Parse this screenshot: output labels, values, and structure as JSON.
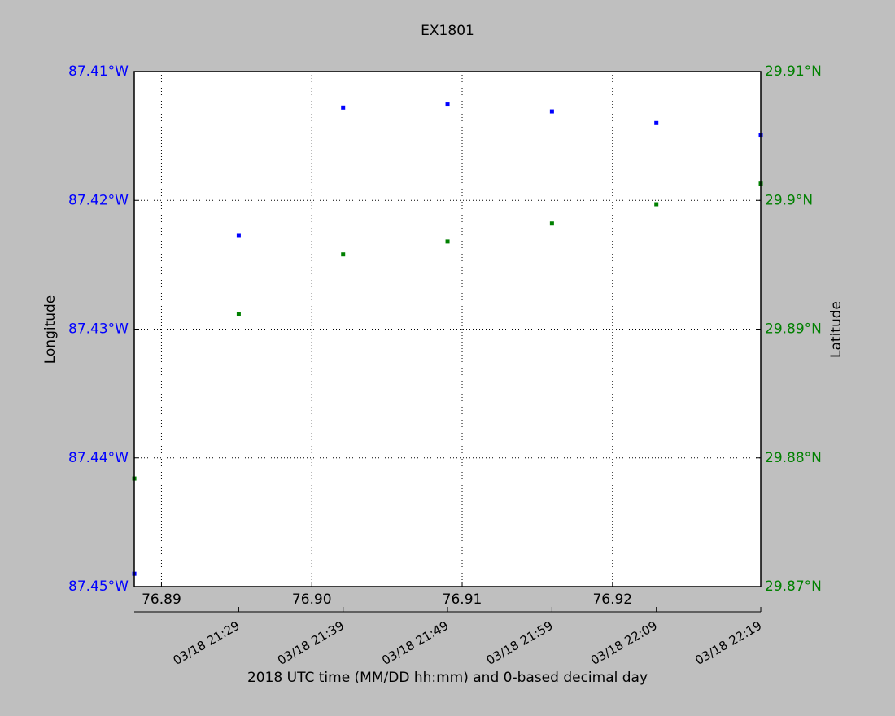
{
  "chart_data": {
    "type": "scatter",
    "title": "EX1801",
    "x_label": "2018 UTC time (MM/DD hh:mm) and 0-based decimal day",
    "y_label": "Longitude",
    "y2_label": "Latitude",
    "x": [
      76.888194,
      76.895139,
      76.902083,
      76.909028,
      76.915972,
      76.922917,
      76.929861
    ],
    "series": [
      {
        "color": "#0000ff",
        "values": [
          -87.449,
          -87.4227,
          -87.4128,
          -87.4125,
          -87.4131,
          -87.414,
          -87.4149
        ]
      },
      {
        "color": "#008000",
        "axis": "y2",
        "values": [
          29.8784,
          29.8912,
          29.8958,
          29.8968,
          29.8982,
          29.8997,
          29.9013
        ]
      }
    ],
    "xlim": [
      76.88819,
      76.92986
    ],
    "xticks": [
      76.89,
      {
        "value": 76.9,
        "label": "76.90"
      },
      76.91,
      76.92
    ],
    "x2ticks": [
      {
        "value": 76.895139,
        "label": "03/18 21:29"
      },
      {
        "value": 76.902083,
        "label": "03/18 21:39"
      },
      {
        "value": 76.909028,
        "label": "03/18 21:49"
      },
      {
        "value": 76.915972,
        "label": "03/18 21:59"
      },
      {
        "value": 76.922917,
        "label": "03/18 22:09"
      },
      {
        "value": 76.929861,
        "label": "03/18 22:19"
      }
    ],
    "ylim": [
      -87.45,
      -87.41
    ],
    "yticks": [
      {
        "value": -87.45,
        "label": "87.45°W"
      },
      {
        "value": -87.44,
        "label": "87.44°W"
      },
      {
        "value": -87.43,
        "label": "87.43°W"
      },
      {
        "value": -87.42,
        "label": "87.42°W"
      },
      {
        "value": -87.41,
        "label": "87.41°W"
      }
    ],
    "y2lim": [
      29.87,
      29.91
    ],
    "y2ticks": [
      {
        "value": 29.87,
        "label": "29.87°N"
      },
      {
        "value": 29.88,
        "label": "29.88°N"
      },
      {
        "value": 29.89,
        "label": "29.89°N"
      },
      {
        "value": 29.9,
        "label": "29.9°N"
      },
      {
        "value": 29.91,
        "label": "29.91°N"
      }
    ],
    "grid": true,
    "y_color": "#0000ff",
    "y2_color": "#008000"
  }
}
